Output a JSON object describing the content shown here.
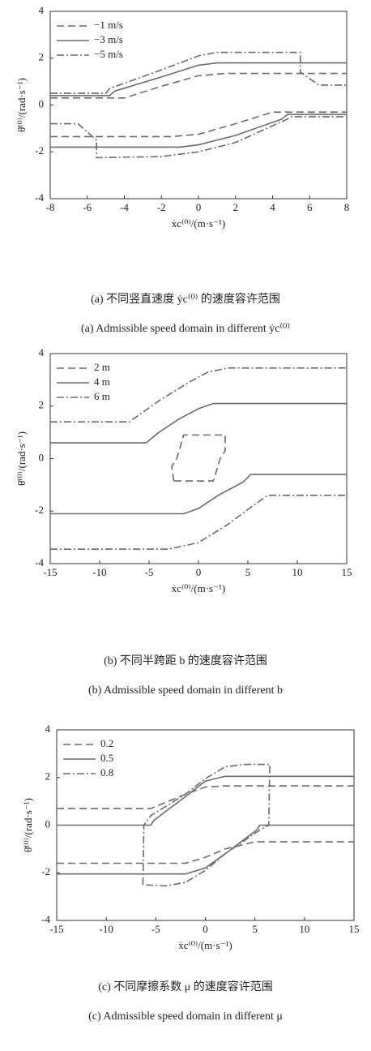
{
  "chart_data": [
    {
      "type": "line",
      "xlabel": "ẋc⁽⁰⁾/(m·s⁻¹)",
      "ylabel": "θ̇⁽⁰⁾/(rad·s⁻¹)",
      "caption_cn": "(a) 不同竖直速度 ẏc⁽⁰⁾ 的速度容许范围",
      "caption_en": "(a) Admissible speed domain in different ẏc⁽⁰⁾",
      "xlim": [
        -8,
        8
      ],
      "xticks": [
        -8,
        -6,
        -4,
        -2,
        0,
        2,
        4,
        6,
        8
      ],
      "ylim": [
        -4,
        4
      ],
      "yticks": [
        -4,
        -2,
        0,
        2,
        4
      ],
      "legend": "upper-left",
      "series": [
        {
          "name": "−1 m/s",
          "color": "#6a6a6a",
          "dash": "dashed",
          "x": [
            -8,
            -4,
            -2,
            0,
            1.5,
            8,
            null,
            -8,
            -1.5,
            0,
            2,
            4,
            8
          ],
          "values": [
            0.3,
            0.3,
            0.8,
            1.25,
            1.35,
            1.35,
            null,
            -1.35,
            -1.35,
            -1.25,
            -0.8,
            -0.3,
            -0.3
          ]
        },
        {
          "name": "−3 m/s",
          "color": "#6a6a6a",
          "dash": "solid",
          "x": [
            -8,
            -4.8,
            -4.5,
            -2,
            0,
            1,
            8,
            null,
            -8,
            -1,
            0,
            2,
            4.5,
            4.8,
            8
          ],
          "values": [
            0.4,
            0.4,
            0.6,
            1.2,
            1.7,
            1.8,
            1.8,
            null,
            -1.8,
            -1.8,
            -1.7,
            -1.3,
            -0.6,
            -0.4,
            -0.4
          ]
        },
        {
          "name": "−5 m/s",
          "color": "#6a6a6a",
          "dash": "dashdot",
          "x": [
            -8,
            -5,
            -4.8,
            -2,
            0,
            1,
            5.5,
            5.5,
            6.5,
            8,
            null,
            -8,
            -6.5,
            -5.5,
            -5.5,
            -2,
            0,
            2,
            4.8,
            5,
            8
          ],
          "values": [
            0.5,
            0.5,
            0.7,
            1.5,
            2.1,
            2.25,
            2.25,
            1.4,
            0.85,
            0.85,
            null,
            -0.8,
            -0.8,
            -1.5,
            -2.25,
            -2.2,
            -2.0,
            -1.6,
            -0.6,
            -0.5,
            -0.5
          ]
        }
      ]
    },
    {
      "type": "line",
      "xlabel": "ẋc⁽⁰⁾/(m·s⁻¹)",
      "ylabel": "θ̇⁽⁰⁾/(rad·s⁻¹)",
      "caption_cn": "(b) 不同半跨距 b 的速度容许范围",
      "caption_en": "(b) Admissible speed domain in different b",
      "xlim": [
        -15,
        15
      ],
      "xticks": [
        -15,
        -10,
        -5,
        0,
        5,
        10,
        15
      ],
      "ylim": [
        -4,
        4
      ],
      "yticks": [
        -4,
        -2,
        0,
        2,
        4
      ],
      "legend": "upper-left",
      "series": [
        {
          "name": "2 m",
          "color": "#6a6a6a",
          "dash": "dashed",
          "x": [
            -2.5,
            -2.7,
            -2.2,
            -1.8,
            -1.5,
            2.7,
            2.7,
            2.2,
            1.8,
            1.5,
            -2.5
          ],
          "values": [
            -0.85,
            -0.3,
            0,
            0.5,
            0.9,
            0.9,
            0.3,
            0,
            -0.5,
            -0.85,
            -0.85
          ]
        },
        {
          "name": "4 m",
          "color": "#6a6a6a",
          "dash": "solid",
          "x": [
            -15,
            -5.3,
            -4,
            -2,
            0,
            1.5,
            15,
            null,
            -15,
            -1.5,
            0,
            2,
            4.5,
            5.3,
            15
          ],
          "values": [
            0.6,
            0.6,
            1.0,
            1.5,
            1.9,
            2.1,
            2.1,
            null,
            -2.1,
            -2.1,
            -1.9,
            -1.4,
            -0.9,
            -0.6,
            -0.6
          ]
        },
        {
          "name": "6 m",
          "color": "#6a6a6a",
          "dash": "dashdot",
          "x": [
            -15,
            -7,
            -4,
            -1,
            1,
            3,
            15,
            null,
            -15,
            -3,
            0,
            3,
            5.5,
            7,
            15
          ],
          "values": [
            1.4,
            1.4,
            2.2,
            2.9,
            3.3,
            3.45,
            3.45,
            null,
            -3.45,
            -3.45,
            -3.2,
            -2.5,
            -1.8,
            -1.4,
            -1.4
          ]
        }
      ]
    },
    {
      "type": "line",
      "xlabel": "ẋc⁽⁰⁾/(m·s⁻¹)",
      "ylabel": "θ̇⁽⁰⁾/(rad·s⁻¹)",
      "caption_cn": "(c) 不同摩擦系数 μ 的速度容许范围",
      "caption_en": "(c) Admissible speed domain in different μ",
      "xlim": [
        -15,
        15
      ],
      "xticks": [
        -15,
        -10,
        -5,
        0,
        5,
        10,
        15
      ],
      "ylim": [
        -4,
        4
      ],
      "yticks": [
        -4,
        -2,
        0,
        2,
        4
      ],
      "legend": "upper-left",
      "series": [
        {
          "name": "0.2",
          "color": "#6a6a6a",
          "dash": "dashed",
          "x": [
            -15,
            -5.5,
            -2,
            0,
            2,
            15,
            null,
            -15,
            -2,
            0,
            2,
            5,
            15
          ],
          "values": [
            0.7,
            0.7,
            1.3,
            1.6,
            1.65,
            1.65,
            null,
            -1.6,
            -1.6,
            -1.35,
            -1.0,
            -0.7,
            -0.7
          ]
        },
        {
          "name": "0.5",
          "color": "#6a6a6a",
          "dash": "solid",
          "x": [
            -15,
            -5.5,
            -5.2,
            -2,
            0,
            2,
            15,
            null,
            -15,
            -2,
            0,
            2,
            5.2,
            5.5,
            15
          ],
          "values": [
            0,
            0,
            0.2,
            1.2,
            1.85,
            2.05,
            2.05,
            null,
            -2.05,
            -2.05,
            -1.8,
            -1.2,
            -0.2,
            0,
            0
          ]
        },
        {
          "name": "0.8",
          "color": "#6a6a6a",
          "dash": "dashdot",
          "x": [
            -6.3,
            -6.2,
            -5.5,
            -2,
            0,
            2,
            4,
            6.5,
            6.4,
            5.5,
            2,
            0,
            -2,
            -4,
            -6.3
          ],
          "values": [
            -2.5,
            0,
            0.4,
            1.3,
            1.95,
            2.45,
            2.55,
            2.55,
            0,
            -0.2,
            -1.2,
            -1.9,
            -2.4,
            -2.55,
            -2.5
          ]
        }
      ]
    }
  ]
}
